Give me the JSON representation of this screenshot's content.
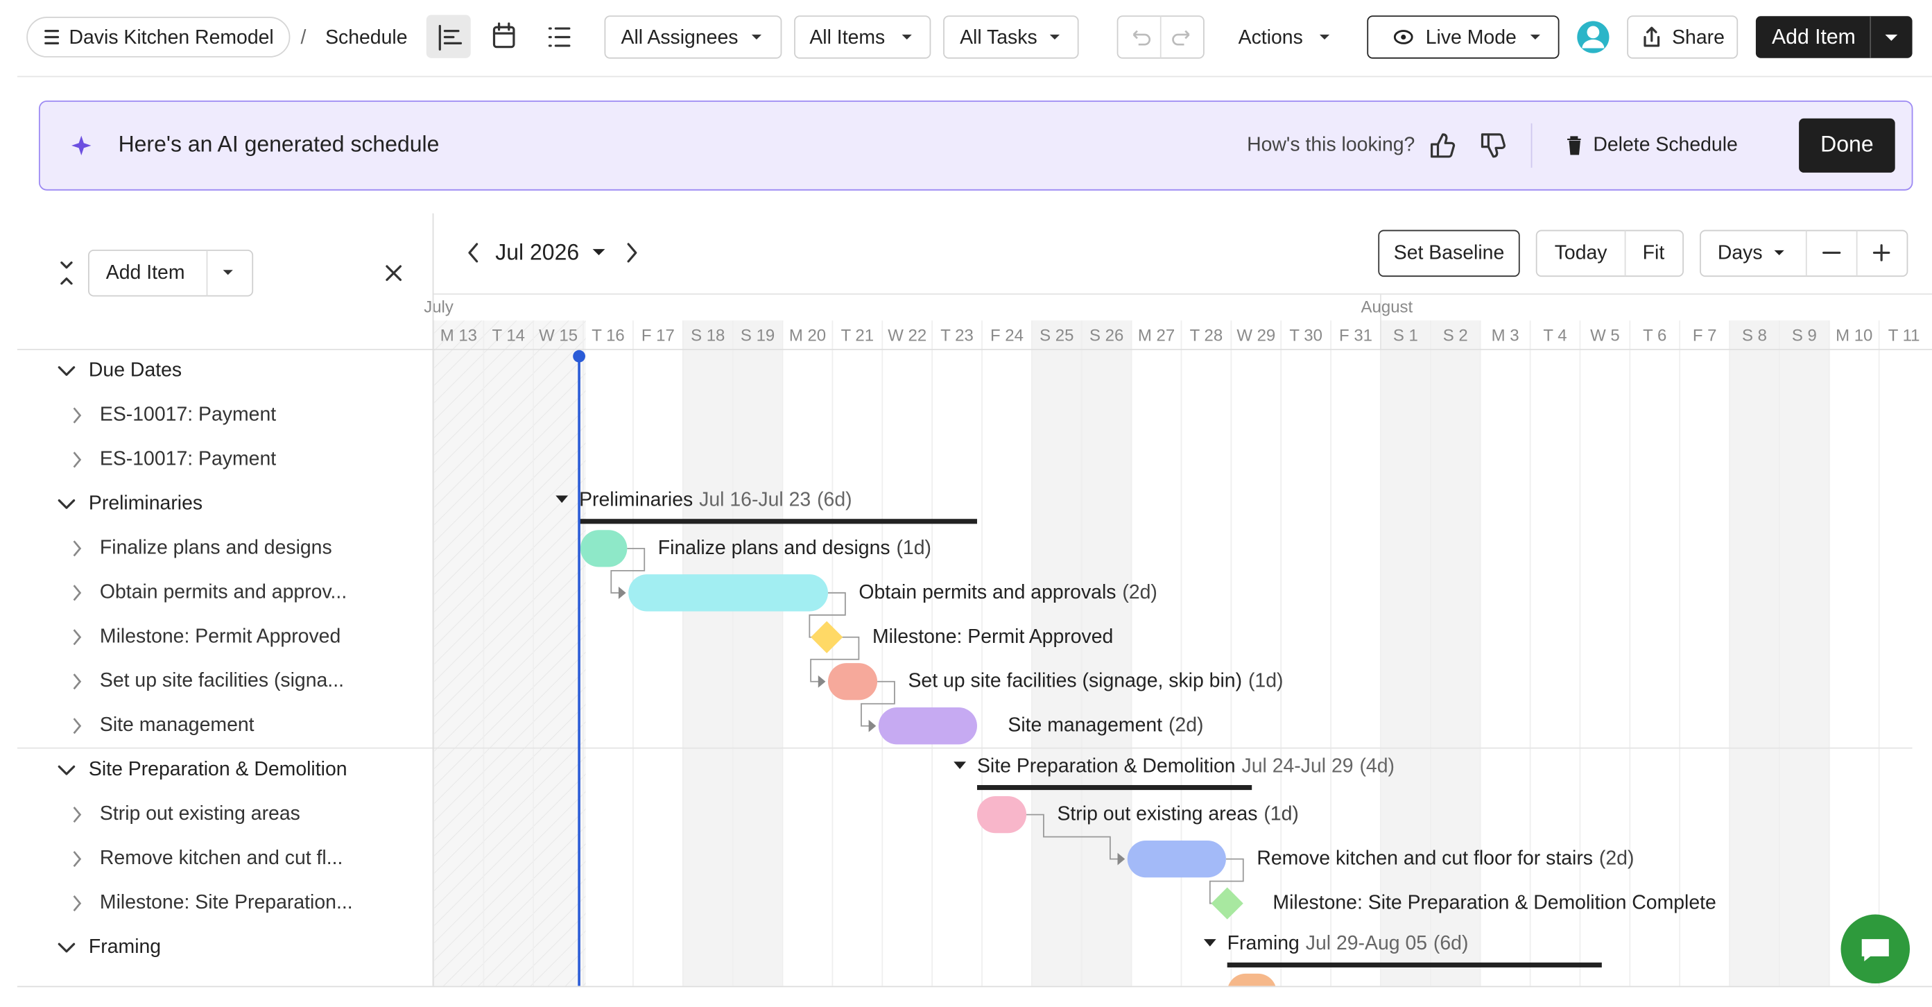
{
  "header": {
    "project": "Davis Kitchen Remodel",
    "separator": "/",
    "page": "Schedule",
    "filters": [
      "All Assignees",
      "All Items",
      "All Tasks"
    ],
    "actions": "Actions",
    "live_mode": "Live Mode",
    "share": "Share",
    "add_item": "Add Item"
  },
  "banner": {
    "title": "Here's an AI generated schedule",
    "feedback": "How's this looking?",
    "delete": "Delete Schedule",
    "done": "Done"
  },
  "sidebar": {
    "add_item": "Add Item",
    "groups": [
      {
        "name": "Due Dates",
        "items": [
          "ES-10017: Payment",
          "ES-10017: Payment"
        ]
      },
      {
        "name": "Preliminaries",
        "items": [
          "Finalize plans and designs",
          "Obtain permits and approv...",
          "Milestone: Permit Approved",
          "Set up site facilities (signa...",
          "Site management"
        ]
      },
      {
        "name": "Site Preparation & Demolition",
        "items": [
          "Strip out existing areas",
          "Remove kitchen and cut fl...",
          "Milestone: Site Preparation..."
        ]
      },
      {
        "name": "Framing",
        "items": []
      }
    ]
  },
  "timeline": {
    "period": "Jul 2026",
    "set_baseline": "Set Baseline",
    "today": "Today",
    "fit": "Fit",
    "scale": "Days",
    "months": [
      "July",
      "August"
    ],
    "days": [
      "M 13",
      "T 14",
      "W 15",
      "T 16",
      "F 17",
      "S 18",
      "S 19",
      "M 20",
      "T 21",
      "W 22",
      "T 23",
      "F 24",
      "S 25",
      "S 26",
      "M 27",
      "T 28",
      "W 29",
      "T 30",
      "F 31",
      "S 1",
      "S 2",
      "M 3",
      "T 4",
      "W 5",
      "T 6",
      "F 7",
      "S 8",
      "S 9",
      "M 10",
      "T 11"
    ],
    "gantt": [
      {
        "name": "Preliminaries",
        "range": "Jul 16-Jul 23",
        "duration": "(6d)",
        "tasks": [
          {
            "name": "Finalize plans and designs",
            "duration": "(1d)"
          },
          {
            "name": "Obtain permits and approvals",
            "duration": "(2d)"
          },
          {
            "name": "Milestone: Permit Approved"
          },
          {
            "name": "Set up site facilities (signage, skip bin)",
            "duration": "(1d)"
          },
          {
            "name": "Site management",
            "duration": "(2d)"
          }
        ]
      },
      {
        "name": "Site Preparation & Demolition",
        "range": "Jul 24-Jul 29",
        "duration": "(4d)",
        "tasks": [
          {
            "name": "Strip out existing areas",
            "duration": "(1d)"
          },
          {
            "name": "Remove kitchen and cut floor for stairs",
            "duration": "(2d)"
          },
          {
            "name": "Milestone: Site Preparation & Demolition Complete"
          }
        ]
      },
      {
        "name": "Framing",
        "range": "Jul 29-Aug 05",
        "duration": "(6d)",
        "tasks": []
      }
    ]
  }
}
